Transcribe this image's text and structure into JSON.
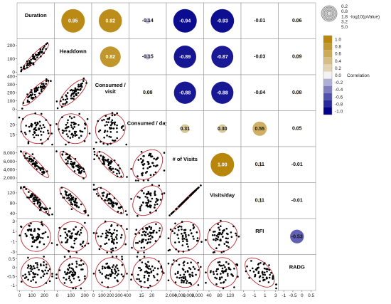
{
  "chart_data": {
    "type": "scatter-matrix",
    "variables": [
      "Duration",
      "Headdown",
      "Consumed / visit",
      "Consumed / day",
      "# of Visits",
      "Visits/day",
      "RFI",
      "RADG"
    ],
    "axis_ticks": [
      {
        "labels": [
          "0",
          "100",
          "200"
        ],
        "range": [
          -20,
          280
        ]
      },
      {
        "labels": [
          "0",
          "100",
          "200"
        ],
        "range": [
          -20,
          250
        ]
      },
      {
        "labels": [
          "0",
          "100",
          "200",
          "300",
          "400"
        ],
        "range": [
          -20,
          420
        ]
      },
      {
        "labels": [
          "15",
          "20"
        ],
        "range": [
          9,
          27
        ]
      },
      {
        "labels": [
          "2,000",
          "4,000",
          "6,000",
          "8,000"
        ],
        "range": [
          900,
          9500
        ]
      },
      {
        "labels": [
          "40",
          "80",
          "120"
        ],
        "range": [
          20,
          160
        ]
      },
      {
        "labels": [
          "-3",
          "-1",
          "1",
          "3"
        ],
        "range": [
          -3.5,
          3.5
        ]
      },
      {
        "labels": [
          "-1",
          "-0.5",
          "0",
          "0.5"
        ],
        "range": [
          -1.3,
          0.75
        ]
      }
    ],
    "y_ticks": [
      {
        "labels": [],
        "range": [
          -20,
          280
        ]
      },
      {
        "labels": [
          "0",
          "100",
          "200"
        ],
        "range": [
          -20,
          250
        ]
      },
      {
        "labels": [
          "0",
          "100",
          "200",
          "300",
          "400"
        ],
        "range": [
          -20,
          420
        ]
      },
      {
        "labels": [
          "15",
          "20"
        ],
        "range": [
          9,
          27
        ]
      },
      {
        "labels": [
          "2,000",
          "4,000",
          "6,000",
          "8,000"
        ],
        "range": [
          900,
          9500
        ]
      },
      {
        "labels": [
          "40",
          "80",
          "120"
        ],
        "range": [
          20,
          160
        ]
      },
      {
        "labels": [
          "-3",
          "-1",
          "1",
          "3"
        ],
        "range": [
          -3.5,
          3.5
        ]
      },
      {
        "labels": [
          "-1",
          "-0.5",
          "0",
          "0.5"
        ],
        "range": [
          -1.3,
          0.75
        ]
      }
    ],
    "correlations": [
      {
        "row": 0,
        "col": 1,
        "value": 0.95,
        "label": "0.95"
      },
      {
        "row": 0,
        "col": 2,
        "value": 0.92,
        "label": "0.92"
      },
      {
        "row": 0,
        "col": 3,
        "value": -0.14,
        "label": "-0.14"
      },
      {
        "row": 0,
        "col": 4,
        "value": -0.94,
        "label": "-0.94"
      },
      {
        "row": 0,
        "col": 5,
        "value": -0.93,
        "label": "-0.93"
      },
      {
        "row": 0,
        "col": 6,
        "value": -0.01,
        "label": "-0.01"
      },
      {
        "row": 0,
        "col": 7,
        "value": 0.06,
        "label": "0.06"
      },
      {
        "row": 1,
        "col": 2,
        "value": 0.82,
        "label": "0.82"
      },
      {
        "row": 1,
        "col": 3,
        "value": -0.15,
        "label": "-0.15"
      },
      {
        "row": 1,
        "col": 4,
        "value": -0.89,
        "label": "-0.89"
      },
      {
        "row": 1,
        "col": 5,
        "value": -0.87,
        "label": "-0.87"
      },
      {
        "row": 1,
        "col": 6,
        "value": -0.03,
        "label": "-0.03"
      },
      {
        "row": 1,
        "col": 7,
        "value": 0.09,
        "label": "0.09"
      },
      {
        "row": 2,
        "col": 3,
        "value": 0.08,
        "label": "0.08"
      },
      {
        "row": 2,
        "col": 4,
        "value": -0.88,
        "label": "-0.88"
      },
      {
        "row": 2,
        "col": 5,
        "value": -0.88,
        "label": "-0.88"
      },
      {
        "row": 2,
        "col": 6,
        "value": -0.04,
        "label": "-0.04"
      },
      {
        "row": 2,
        "col": 7,
        "value": 0.08,
        "label": "0.08"
      },
      {
        "row": 3,
        "col": 4,
        "value": 0.31,
        "label": "0.31"
      },
      {
        "row": 3,
        "col": 5,
        "value": 0.3,
        "label": "0.30"
      },
      {
        "row": 3,
        "col": 6,
        "value": 0.55,
        "label": "0.55"
      },
      {
        "row": 3,
        "col": 7,
        "value": 0.05,
        "label": "0.05"
      },
      {
        "row": 4,
        "col": 5,
        "value": 1.0,
        "label": "1.00"
      },
      {
        "row": 4,
        "col": 6,
        "value": 0.11,
        "label": "0.11"
      },
      {
        "row": 4,
        "col": 7,
        "value": -0.01,
        "label": "-0.01"
      },
      {
        "row": 5,
        "col": 6,
        "value": 0.11,
        "label": "0.11"
      },
      {
        "row": 5,
        "col": 7,
        "value": -0.01,
        "label": "-0.01"
      },
      {
        "row": 6,
        "col": 7,
        "value": -0.53,
        "label": "-0.53"
      }
    ],
    "size_legend": {
      "title": "-log10(pValue)",
      "values": [
        "0.2",
        "0.8",
        "1.8",
        "3.2",
        "5.0"
      ]
    },
    "color_legend": {
      "title": "Correlation",
      "ticks": [
        "1.0",
        "0.8",
        "0.6",
        "0.4",
        "0.2",
        "0.0",
        "-0.2",
        "-0.4",
        "-0.6",
        "-0.8",
        "-1.0"
      ],
      "positive_color": "#b8860b",
      "negative_color": "#00008b"
    },
    "ellipse_color": "#c0282f",
    "point_color": "#000000",
    "grid": true
  }
}
